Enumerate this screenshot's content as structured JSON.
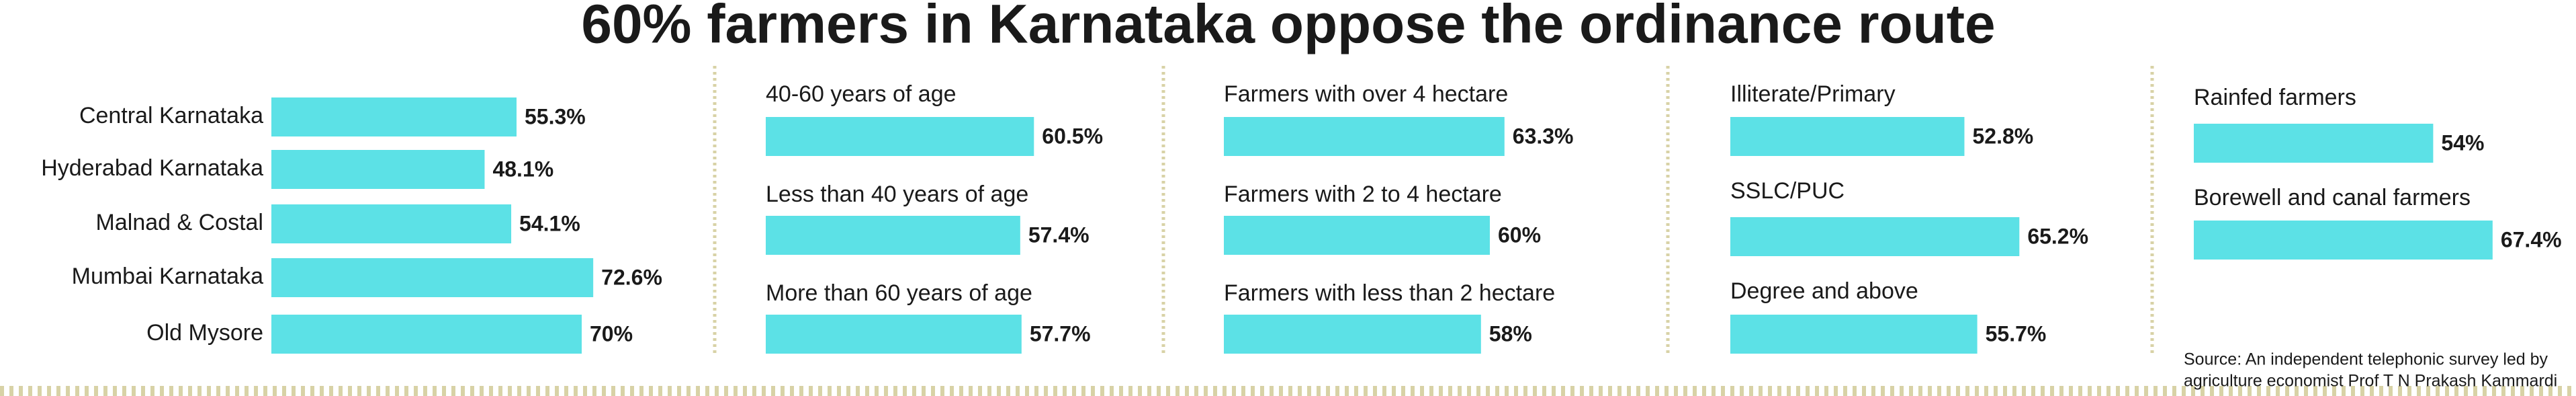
{
  "title": "60% farmers in Karnataka oppose the ordinance route",
  "source": [
    "Source: An independent telephonic survey led by",
    "agriculture economist Prof T N Prakash Kammardi"
  ],
  "chart_data": [
    {
      "type": "bar",
      "color": "#5ce1e6",
      "categories": [
        "Central Karnataka",
        "Hyderabad Karnataka",
        "Malnad & Costal",
        "Mumbai Karnataka",
        "Old Mysore"
      ],
      "values": [
        55.3,
        48.1,
        54.1,
        72.6,
        70
      ],
      "value_labels": [
        "55.3%",
        "48.1%",
        "54.1%",
        "72.6%",
        "70%"
      ]
    },
    {
      "type": "bar",
      "color": "#5ce1e6",
      "categories": [
        "40-60 years of age",
        "Less than 40 years of age",
        "More than 60 years of age"
      ],
      "values": [
        60.5,
        57.4,
        57.7
      ],
      "value_labels": [
        "60.5%",
        "57.4%",
        "57.7%"
      ]
    },
    {
      "type": "bar",
      "color": "#5ce1e6",
      "categories": [
        "Farmers with over 4 hectare",
        "Farmers with 2 to 4 hectare",
        "Farmers with less than 2 hectare"
      ],
      "values": [
        63.3,
        60,
        58
      ],
      "value_labels": [
        "63.3%",
        "60%",
        "58%"
      ]
    },
    {
      "type": "bar",
      "color": "#5ce1e6",
      "categories": [
        "Illiterate/Primary",
        "SSLC/PUC",
        "Degree and above"
      ],
      "values": [
        52.8,
        65.2,
        55.7
      ],
      "value_labels": [
        "52.8%",
        "65.2%",
        "55.7%"
      ]
    },
    {
      "type": "bar",
      "color": "#5ce1e6",
      "categories": [
        "Rainfed farmers",
        "Borewell and canal farmers"
      ],
      "values": [
        54,
        67.4
      ],
      "value_labels": [
        "54%",
        "67.4%"
      ]
    }
  ]
}
